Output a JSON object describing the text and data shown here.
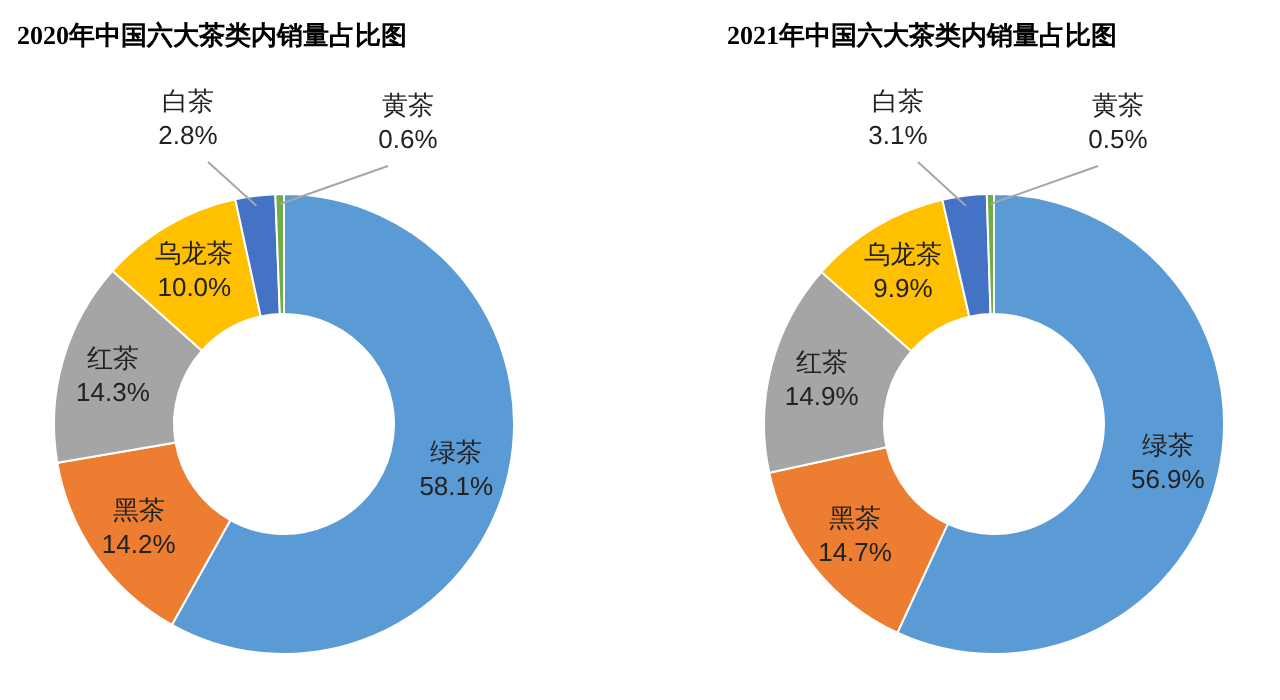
{
  "chart_data": [
    {
      "type": "donut",
      "title": "2020年中国六大茶类内销量占比图",
      "categories": [
        "绿茶",
        "黑茶",
        "红茶",
        "乌龙茶",
        "白茶",
        "黄茶"
      ],
      "values": [
        58.1,
        14.2,
        14.3,
        10.0,
        2.8,
        0.6
      ],
      "value_labels": [
        "58.1%",
        "14.2%",
        "14.3%",
        "10.0%",
        "2.8%",
        "0.6%"
      ],
      "colors": [
        "#5b9bd5",
        "#ed7d31",
        "#a5a5a5",
        "#ffc000",
        "#4472c4",
        "#70ad47"
      ]
    },
    {
      "type": "donut",
      "title": "2021年中国六大茶类内销量占比图",
      "categories": [
        "绿茶",
        "黑茶",
        "红茶",
        "乌龙茶",
        "白茶",
        "黄茶"
      ],
      "values": [
        56.9,
        14.7,
        14.9,
        9.9,
        3.1,
        0.5
      ],
      "value_labels": [
        "56.9%",
        "14.7%",
        "14.9%",
        "9.9%",
        "3.1%",
        "0.5%"
      ],
      "colors": [
        "#5b9bd5",
        "#ed7d31",
        "#a5a5a5",
        "#ffc000",
        "#4472c4",
        "#70ad47"
      ]
    }
  ]
}
